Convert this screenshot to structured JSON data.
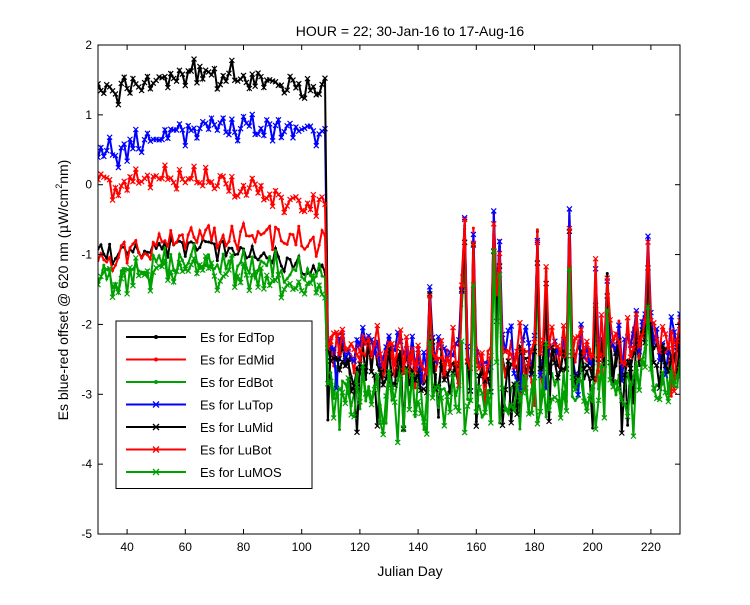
{
  "chart_data": {
    "type": "line",
    "title": "HOUR = 22; 30-Jan-16 to 17-Aug-16",
    "xlabel": "Julian Day",
    "ylabel": {
      "prefix": "Es blue-red offset @ 620 nm (",
      "mu": "μ",
      "unit_w": "W/cm",
      "sup": "2",
      "suffix": "nm)"
    },
    "xlim": [
      30,
      230
    ],
    "ylim": [
      -5,
      2
    ],
    "xticks": [
      "40",
      "60",
      "80",
      "100",
      "120",
      "140",
      "160",
      "180",
      "200",
      "220"
    ],
    "yticks": [
      "-5",
      "-4",
      "-3",
      "-2",
      "-1",
      "0",
      "1",
      "2"
    ],
    "grid": false,
    "legend_position": "lower-left",
    "change_day": 109,
    "series": [
      {
        "name": "Es for EdTop",
        "color": "#000000",
        "marker": "dot",
        "pre": {
          "start": -1.0,
          "end": -1.3,
          "amp": 0.18
        },
        "post": {
          "base": -2.45,
          "dip": -3.3,
          "amp": 0.45,
          "seed": 11
        }
      },
      {
        "name": "Es for EdMid",
        "color": "#ff0000",
        "marker": "dot",
        "pre": {
          "start": -1.1,
          "end": -0.9,
          "amp": 0.25
        },
        "post": {
          "base": -2.3,
          "dip": -3.0,
          "amp": 0.45,
          "seed": 23
        }
      },
      {
        "name": "Es for EdBot",
        "color": "#00a000",
        "marker": "dot",
        "pre": {
          "start": -1.3,
          "end": -1.4,
          "amp": 0.3
        },
        "post": {
          "base": -2.8,
          "dip": -3.4,
          "amp": 0.5,
          "seed": 37
        }
      },
      {
        "name": "Es for LuTop",
        "color": "#0000ff",
        "marker": "x",
        "pre": {
          "start": 0.4,
          "end": 0.7,
          "amp": 0.25
        },
        "post": {
          "base": -2.2,
          "dip": -2.9,
          "amp": 0.45,
          "seed": 41
        }
      },
      {
        "name": "Es for LuMid",
        "color": "#000000",
        "marker": "x",
        "pre": {
          "start": 1.3,
          "end": 1.3,
          "amp": 0.25
        },
        "post": {
          "base": -2.5,
          "dip": -3.4,
          "amp": 0.5,
          "seed": 53
        }
      },
      {
        "name": "Es for LuBot",
        "color": "#ff0000",
        "marker": "x",
        "pre": {
          "start": 0.0,
          "end": -0.4,
          "amp": 0.25
        },
        "post": {
          "base": -2.2,
          "dip": -2.8,
          "amp": 0.45,
          "seed": 67
        }
      },
      {
        "name": "Es for LuMOS",
        "color": "#00a000",
        "marker": "x",
        "pre": {
          "start": -1.4,
          "end": -1.6,
          "amp": 0.3
        },
        "post": {
          "base": -2.9,
          "dip": -3.5,
          "amp": 0.5,
          "seed": 79
        }
      }
    ]
  }
}
